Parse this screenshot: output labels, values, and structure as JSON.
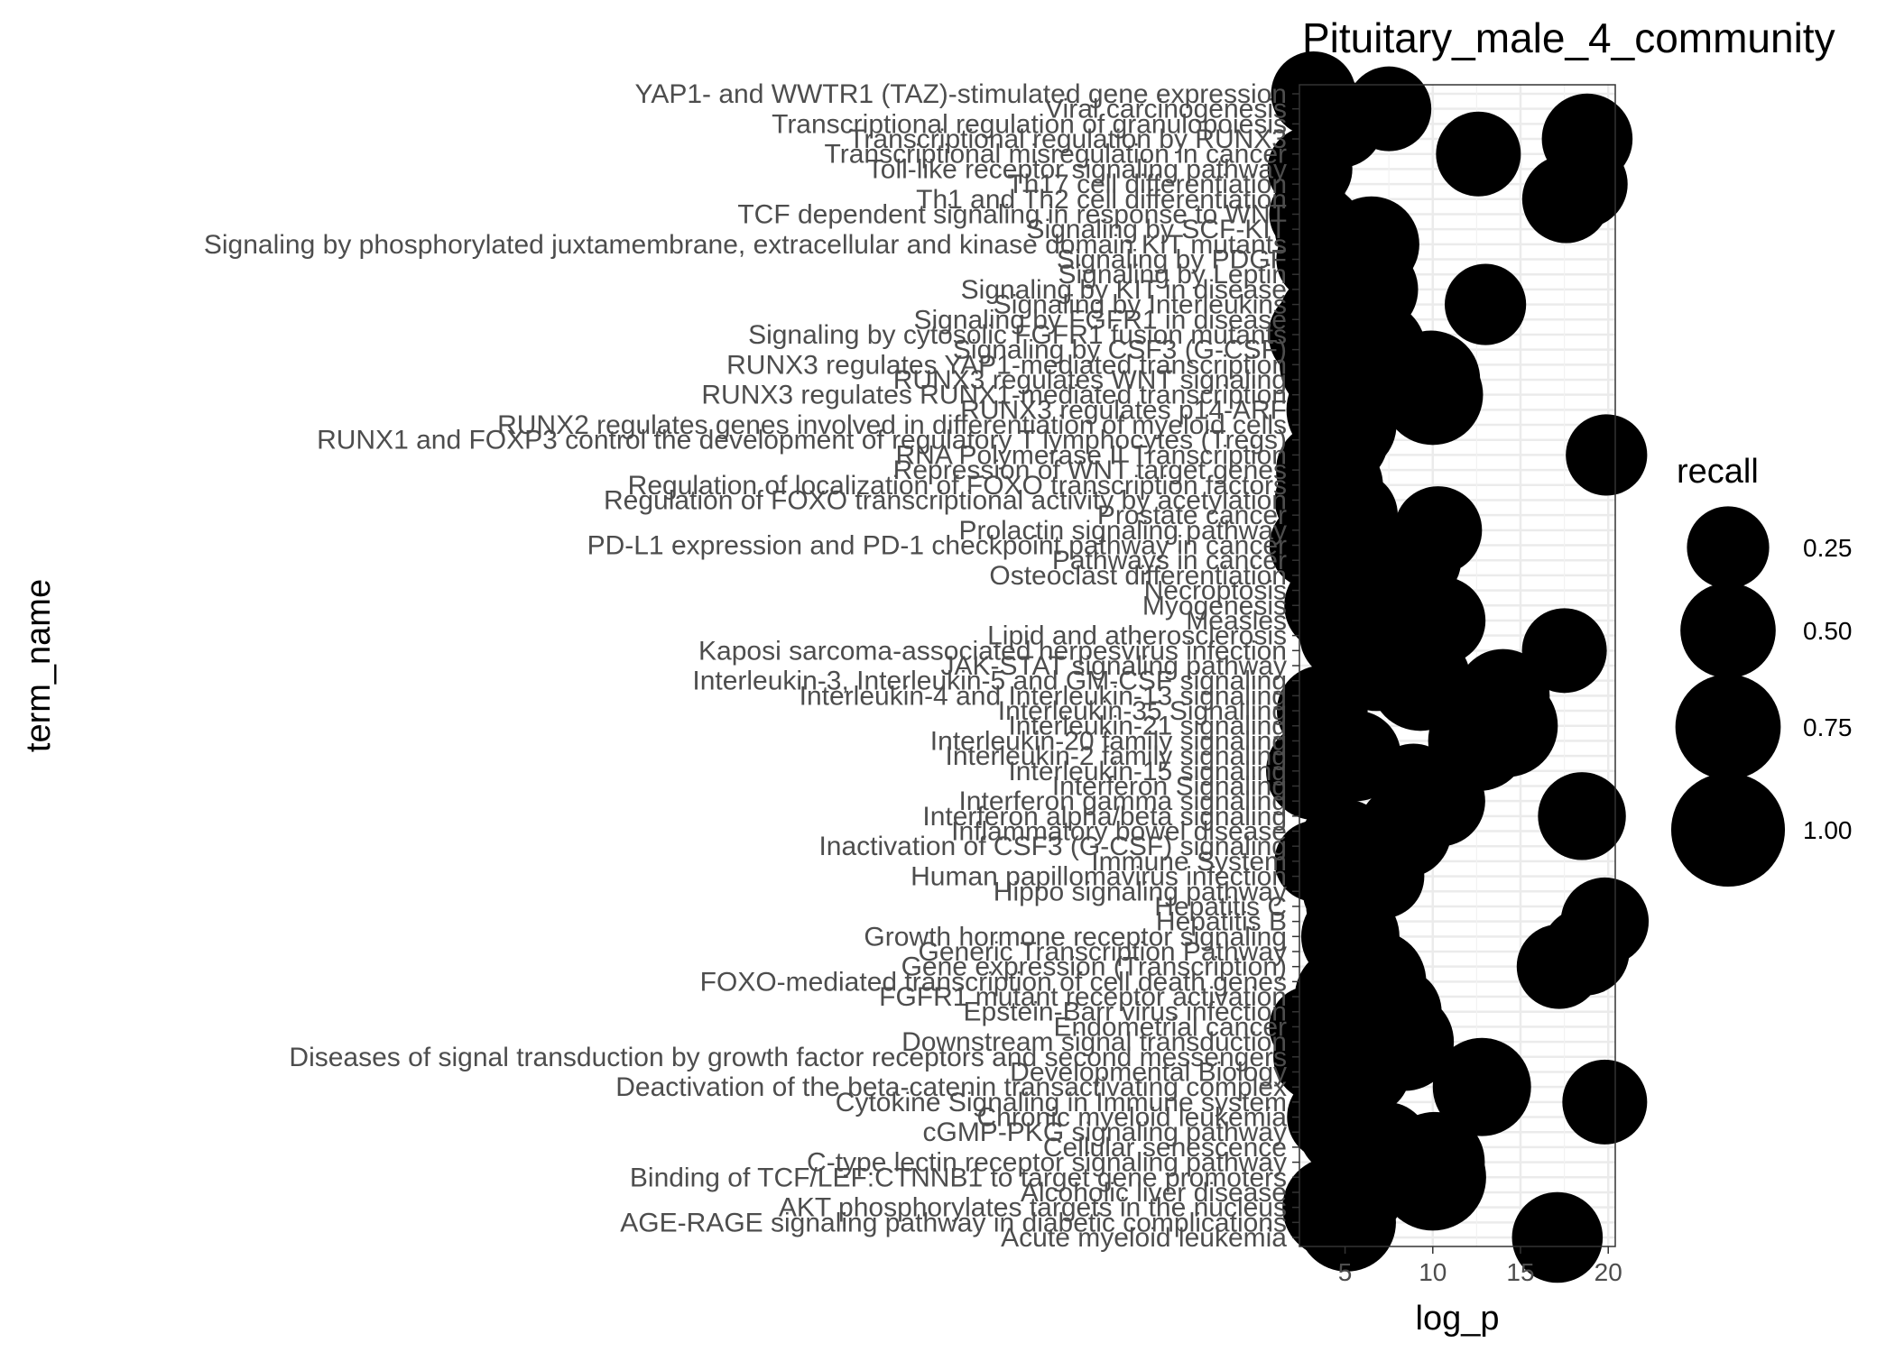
{
  "chart_data": {
    "type": "scatter",
    "title": "Pituitary_male_4_community",
    "xlabel": "log_p",
    "ylabel": "term_name",
    "xlim": [
      2.4,
      20.4
    ],
    "x_ticks": [
      5,
      10,
      15,
      20
    ],
    "grid": true,
    "legend": {
      "title": "recall",
      "placement": "right",
      "entries": [
        {
          "label": "0.25",
          "value": 0.25
        },
        {
          "label": "0.50",
          "value": 0.5
        },
        {
          "label": "0.75",
          "value": 0.75
        },
        {
          "label": "1.00",
          "value": 1.0
        }
      ]
    },
    "categories": [
      "YAP1- and WWTR1 (TAZ)-stimulated gene expression",
      "Viral carcinogenesis",
      "Transcriptional regulation of granulopoiesis",
      "Transcriptional regulation by RUNX3",
      "Transcriptional misregulation in cancer",
      "Toll-like receptor signaling pathway",
      "Th17 cell differentiation",
      "Th1 and Th2 cell differentiation",
      "TCF dependent signaling in response to WNT",
      "Signaling by SCF-KIT",
      "Signaling by phosphorylated juxtamembrane, extracellular and kinase domain KIT mutants",
      "Signaling by PDGF",
      "Signaling by Leptin",
      "Signaling by KIT in disease",
      "Signaling by Interleukins",
      "Signaling by FGFR1 in disease",
      "Signaling by cytosolic FGFR1 fusion mutants",
      "Signaling by CSF3 (G-CSF)",
      "RUNX3 regulates YAP1-mediated transcription",
      "RUNX3 regulates WNT signaling",
      "RUNX3 regulates RUNX1-mediated transcription",
      "RUNX3 regulates p14-ARF",
      "RUNX2 regulates genes involved in differentiation of myeloid cells",
      "RUNX1 and FOXP3 control the development of regulatory T lymphocytes (Tregs)",
      "RNA Polymerase II Transcription",
      "Repression of WNT target genes",
      "Regulation of localization of FOXO transcription factors",
      "Regulation of FOXO transcriptional activity by acetylation",
      "Prostate cancer",
      "Prolactin signaling pathway",
      "PD-L1 expression and PD-1 checkpoint pathway in cancer",
      "Pathways in cancer",
      "Osteoclast differentiation",
      "Necroptosis",
      "Myogenesis",
      "Measles",
      "Lipid and atherosclerosis",
      "Kaposi sarcoma-associated herpesvirus infection",
      "JAK-STAT signaling pathway",
      "Interleukin-3, Interleukin-5 and GM-CSF signaling",
      "Interleukin-4 and Interleukin-13 signaling",
      "Interleukin-35 Signalling",
      "Interleukin-21 signaling",
      "Interleukin-20 family signaling",
      "Interleukin-2 family signaling",
      "Interleukin-15 signaling",
      "Interferon Signaling",
      "Interferon gamma signaling",
      "Interferon alpha/beta signaling",
      "Inflammatory bowel disease",
      "Inactivation of CSF3 (G-CSF) signaling",
      "Immune System",
      "Human papillomavirus infection",
      "Hippo signaling pathway",
      "Hepatitis C",
      "Hepatitis B",
      "Growth hormone receptor signaling",
      "Generic Transcription Pathway",
      "Gene expression (Transcription)",
      "FOXO-mediated transcription of cell death genes",
      "FGFR1 mutant receptor activation",
      "Epstein-Barr virus infection",
      "Endometrial cancer",
      "Downstream signal transduction",
      "Diseases of signal transduction by growth factor receptors and second messengers",
      "Developmental Biology",
      "Deactivation of the beta-catenin transactivating complex",
      "Cytokine Signaling in Immune system",
      "Chronic myeloid leukemia",
      "cGMP-PKG signaling pathway",
      "Cellular senescence",
      "C-type lectin receptor signaling pathway",
      "Binding of TCF/LEF:CTNNB1 to target gene promoters",
      "Alcoholic liver disease",
      "AKT phosphorylates targets in the nucleus",
      "AGE-RAGE signaling pathway in diabetic complications",
      "Acute myeloid leukemia"
    ],
    "points": [
      {
        "y": "YAP1- and WWTR1 (TAZ)-stimulated gene expression",
        "x": 3.2,
        "recall": 0.25
      },
      {
        "y": "Viral carcinogenesis",
        "x": 7.5,
        "recall": 0.25
      },
      {
        "y": "Transcriptional regulation of granulopoiesis",
        "x": 4.7,
        "recall": 0.3
      },
      {
        "y": "Transcriptional regulation by RUNX3",
        "x": 18.8,
        "recall": 0.35
      },
      {
        "y": "Transcriptional misregulation in cancer",
        "x": 12.6,
        "recall": 0.25
      },
      {
        "y": "Toll-like receptor signaling pathway",
        "x": 3.0,
        "recall": 0.25
      },
      {
        "y": "Th17 cell differentiation",
        "x": 18.6,
        "recall": 0.3
      },
      {
        "y": "Th1 and Th2 cell differentiation",
        "x": 17.6,
        "recall": 0.3
      },
      {
        "y": "TCF dependent signaling in response to WNT",
        "x": 3.0,
        "recall": 0.2
      },
      {
        "y": "Signaling by SCF-KIT",
        "x": 3.5,
        "recall": 0.3
      },
      {
        "y": "Signaling by phosphorylated juxtamembrane, extracellular and kinase domain KIT mutants",
        "x": 6.5,
        "recall": 0.45
      },
      {
        "y": "Signaling by PDGF",
        "x": 3.5,
        "recall": 0.25
      },
      {
        "y": "Signaling by Leptin",
        "x": 4.5,
        "recall": 0.4
      },
      {
        "y": "Signaling by KIT in disease",
        "x": 6.5,
        "recall": 0.4
      },
      {
        "y": "Signaling by Interleukins",
        "x": 13.0,
        "recall": 0.2
      },
      {
        "y": "Signaling by FGFR1 in disease",
        "x": 4.0,
        "recall": 0.5
      },
      {
        "y": "Signaling by cytosolic FGFR1 fusion mutants",
        "x": 3.3,
        "recall": 0.4
      },
      {
        "y": "Signaling by CSF3 (G-CSF)",
        "x": 6.8,
        "recall": 0.5
      },
      {
        "y": "RUNX3 regulates YAP1-mediated transcription",
        "x": 4.2,
        "recall": 0.6
      },
      {
        "y": "RUNX3 regulates WNT signaling",
        "x": 9.9,
        "recall": 0.5
      },
      {
        "y": "RUNX3 regulates RUNX1-mediated transcription",
        "x": 10.0,
        "recall": 0.55
      },
      {
        "y": "RUNX3 regulates p14-ARF",
        "x": 4.7,
        "recall": 0.7
      },
      {
        "y": "RUNX2 regulates genes involved in differentiation of myeloid cells",
        "x": 5.2,
        "recall": 0.45
      },
      {
        "y": "RUNX1 and FOXP3 control the development of regulatory T lymphocytes (Tregs)",
        "x": 4.8,
        "recall": 0.4
      },
      {
        "y": "RNA Polymerase II Transcription",
        "x": 19.9,
        "recall": 0.2
      },
      {
        "y": "Repression of WNT target genes",
        "x": 3.8,
        "recall": 0.45
      },
      {
        "y": "Regulation of localization of FOXO transcription factors",
        "x": 4.5,
        "recall": 0.4
      },
      {
        "y": "Regulation of FOXO transcriptional activity by acetylation",
        "x": 3.5,
        "recall": 0.3
      },
      {
        "y": "Prostate cancer",
        "x": 5.5,
        "recall": 0.3
      },
      {
        "y": "Prolactin signaling pathway",
        "x": 10.3,
        "recall": 0.3
      },
      {
        "y": "PD-L1 expression and PD-1 checkpoint pathway in cancer",
        "x": 3.2,
        "recall": 0.3
      },
      {
        "y": "Pathways in cancer",
        "x": 9.2,
        "recall": 0.25
      },
      {
        "y": "Osteoclast differentiation",
        "x": 4.5,
        "recall": 0.3
      },
      {
        "y": "Necroptosis",
        "x": 7.0,
        "recall": 0.3
      },
      {
        "y": "Myogenesis",
        "x": 4.2,
        "recall": 0.4
      },
      {
        "y": "Measles",
        "x": 10.5,
        "recall": 0.3
      },
      {
        "y": "Lipid and atherosclerosis",
        "x": 5.0,
        "recall": 0.35
      },
      {
        "y": "Kaposi sarcoma-associated herpesvirus infection",
        "x": 17.5,
        "recall": 0.25
      },
      {
        "y": "JAK-STAT signaling pathway",
        "x": 6.8,
        "recall": 0.35
      },
      {
        "y": "Interleukin-3, Interleukin-5 and GM-CSF signaling",
        "x": 9.3,
        "recall": 0.55
      },
      {
        "y": "Interleukin-4 and Interleukin-13 signaling",
        "x": 14.0,
        "recall": 0.4
      },
      {
        "y": "Interleukin-35 Signalling",
        "x": 3.7,
        "recall": 0.35
      },
      {
        "y": "Interleukin-21 signaling",
        "x": 14.2,
        "recall": 0.6
      },
      {
        "y": "Interleukin-20 family signaling",
        "x": 12.6,
        "recall": 0.55
      },
      {
        "y": "Interleukin-2 family signaling",
        "x": 5.6,
        "recall": 0.35
      },
      {
        "y": "Interleukin-15 signaling",
        "x": 3.3,
        "recall": 0.5
      },
      {
        "y": "Interferon Signaling",
        "x": 8.9,
        "recall": 0.25
      },
      {
        "y": "Interferon gamma signaling",
        "x": 10.4,
        "recall": 0.35
      },
      {
        "y": "Interferon alpha/beta signaling",
        "x": 18.5,
        "recall": 0.3
      },
      {
        "y": "Inflammatory bowel disease",
        "x": 8.4,
        "recall": 0.4
      },
      {
        "y": "Inactivation of CSF3 (G-CSF) signaling",
        "x": 5.0,
        "recall": 0.4
      },
      {
        "y": "Immune System",
        "x": 3.3,
        "recall": 0.2
      },
      {
        "y": "Human papillomavirus infection",
        "x": 7.1,
        "recall": 0.25
      },
      {
        "y": "Hippo signaling pathway",
        "x": 5.0,
        "recall": 0.25
      },
      {
        "y": "Hepatitis C",
        "x": 5.2,
        "recall": 0.25
      },
      {
        "y": "Hepatitis B",
        "x": 19.8,
        "recall": 0.3
      },
      {
        "y": "Growth hormone receptor signaling",
        "x": 5.3,
        "recall": 0.5
      },
      {
        "y": "Generic Transcription Pathway",
        "x": 18.7,
        "recall": 0.3
      },
      {
        "y": "Gene expression (Transcription)",
        "x": 17.2,
        "recall": 0.25
      },
      {
        "y": "FOXO-mediated transcription of cell death genes",
        "x": 6.7,
        "recall": 0.6
      },
      {
        "y": "FGFR1 mutant receptor activation",
        "x": 5.0,
        "recall": 0.55
      },
      {
        "y": "Epstein-Barr virus infection",
        "x": 8.0,
        "recall": 0.3
      },
      {
        "y": "Endometrial cancer",
        "x": 3.0,
        "recall": 0.2
      },
      {
        "y": "Downstream signal transduction",
        "x": 8.4,
        "recall": 0.5
      },
      {
        "y": "Diseases of signal transduction by growth factor receptors and second messengers",
        "x": 3.5,
        "recall": 0.35
      },
      {
        "y": "Developmental Biology",
        "x": 6.3,
        "recall": 0.25
      },
      {
        "y": "Deactivation of the beta-catenin transactivating complex",
        "x": 12.8,
        "recall": 0.5
      },
      {
        "y": "Cytokine Signaling in Immune system",
        "x": 19.8,
        "recall": 0.25
      },
      {
        "y": "Chronic myeloid leukemia",
        "x": 4.2,
        "recall": 0.3
      },
      {
        "y": "cGMP-PKG signaling pathway",
        "x": 4.8,
        "recall": 0.25
      },
      {
        "y": "Cellular senescence",
        "x": 7.3,
        "recall": 0.35
      },
      {
        "y": "C-type lectin receptor signaling pathway",
        "x": 10.1,
        "recall": 0.55
      },
      {
        "y": "Binding of TCF/LEF:CTNNB1 to target gene promoters",
        "x": 10.0,
        "recall": 0.7
      },
      {
        "y": "Alcoholic liver disease",
        "x": 5.8,
        "recall": 0.35
      },
      {
        "y": "AKT phosphorylates targets in the nucleus",
        "x": 4.3,
        "recall": 0.55
      },
      {
        "y": "AGE-RAGE signaling pathway in diabetic complications",
        "x": 5.1,
        "recall": 0.5
      },
      {
        "y": "Acute myeloid leukemia",
        "x": 17.1,
        "recall": 0.35
      }
    ]
  }
}
